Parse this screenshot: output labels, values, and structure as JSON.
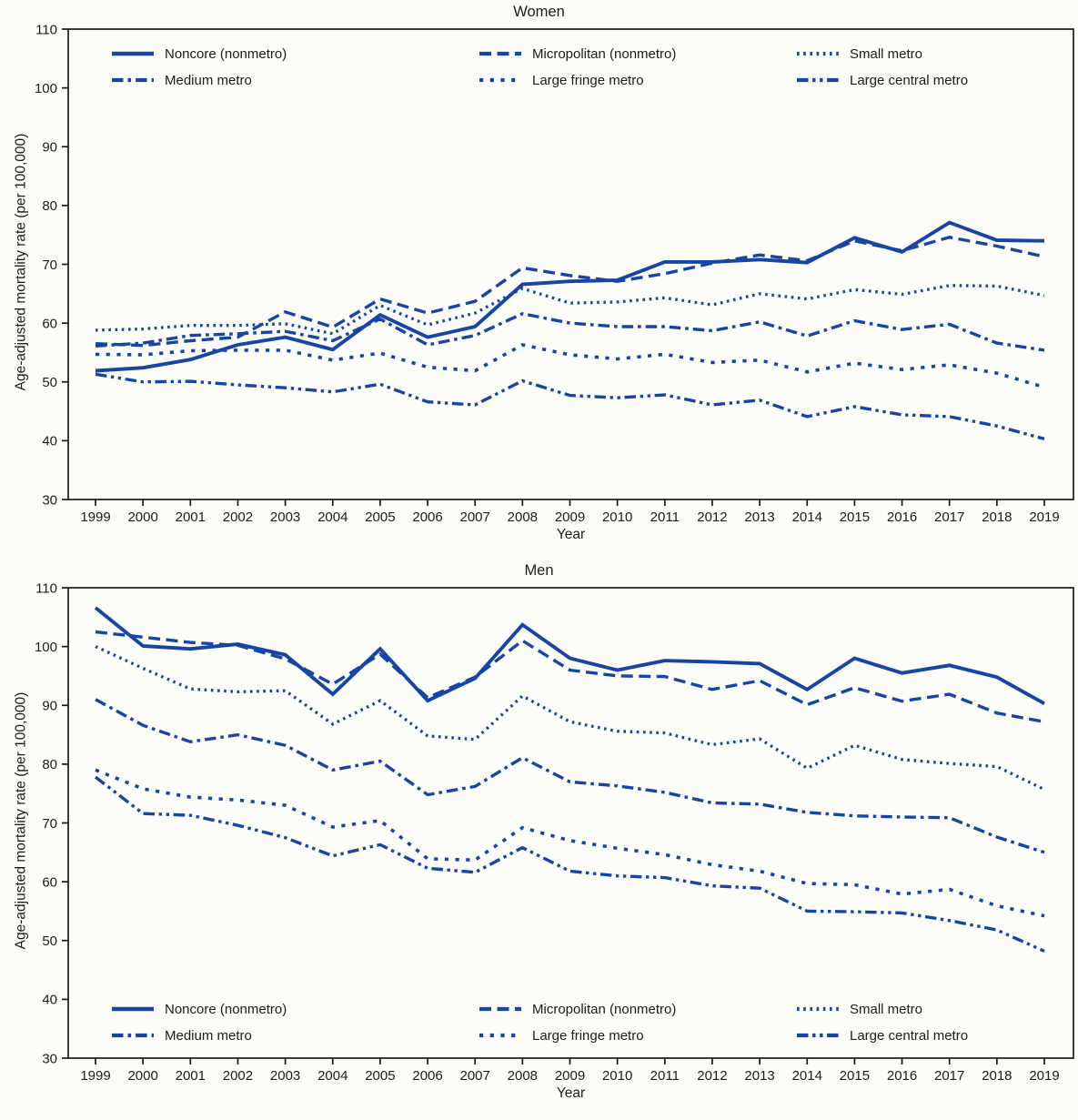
{
  "figure": {
    "background_color": "#fcfcf9",
    "line_color": "#1745a5",
    "axis_color": "#1a1a1a",
    "text_color": "#1c1c1c"
  },
  "chart_data": [
    {
      "type": "line",
      "title": "Women",
      "xlabel": "Year",
      "ylabel": "Age-adjusted mortality rate (per 100,000)",
      "ylim": [
        30,
        110
      ],
      "yticks": [
        30,
        40,
        50,
        60,
        70,
        80,
        90,
        100,
        110
      ],
      "grid": false,
      "legend_position": "top-inside",
      "x": [
        1999,
        2000,
        2001,
        2002,
        2003,
        2004,
        2005,
        2006,
        2007,
        2008,
        2009,
        2010,
        2011,
        2012,
        2013,
        2014,
        2015,
        2016,
        2017,
        2018,
        2019
      ],
      "series": [
        {
          "name": "Noncore (nonmetro)",
          "style": "solid",
          "values": [
            51.9,
            52.4,
            53.8,
            56.3,
            57.6,
            55.5,
            61.4,
            57.6,
            59.4,
            66.6,
            67.1,
            67.3,
            70.4,
            70.4,
            70.8,
            70.3,
            74.5,
            72.1,
            77.1,
            74.1,
            74.0
          ]
        },
        {
          "name": "Micropolitan (nonmetro)",
          "style": "dash",
          "values": [
            56.5,
            56.2,
            57.0,
            57.6,
            61.9,
            59.3,
            64.1,
            61.7,
            63.7,
            69.4,
            68.1,
            67.1,
            68.4,
            70.2,
            71.6,
            70.6,
            74.0,
            72.3,
            74.6,
            73.1,
            71.3
          ]
        },
        {
          "name": "Small metro",
          "style": "dot",
          "values": [
            58.8,
            59.0,
            59.6,
            59.6,
            59.9,
            58.2,
            63.0,
            59.7,
            61.7,
            65.9,
            63.4,
            63.6,
            64.3,
            63.1,
            65.0,
            64.1,
            65.7,
            64.9,
            66.4,
            66.3,
            64.7
          ]
        },
        {
          "name": "Medium metro",
          "style": "dashdot",
          "values": [
            56.1,
            56.6,
            57.9,
            58.2,
            58.6,
            57.0,
            60.7,
            56.3,
            57.9,
            61.6,
            60.0,
            59.4,
            59.4,
            58.7,
            60.2,
            57.8,
            60.4,
            58.9,
            59.8,
            56.6,
            55.4
          ]
        },
        {
          "name": "Large fringe metro",
          "style": "sqdot",
          "values": [
            54.7,
            54.6,
            55.3,
            55.4,
            55.4,
            53.7,
            54.9,
            52.5,
            51.9,
            56.3,
            54.6,
            53.9,
            54.7,
            53.3,
            53.7,
            51.7,
            53.2,
            52.1,
            52.9,
            51.5,
            49.1
          ]
        },
        {
          "name": "Large central metro",
          "style": "dashdotdot",
          "values": [
            51.3,
            50.0,
            50.1,
            49.5,
            49.0,
            48.3,
            49.6,
            46.6,
            46.1,
            50.2,
            47.7,
            47.3,
            47.8,
            46.1,
            46.9,
            44.1,
            45.8,
            44.4,
            44.1,
            42.5,
            40.3
          ]
        }
      ]
    },
    {
      "type": "line",
      "title": "Men",
      "xlabel": "Year",
      "ylabel": "Age-adjusted mortality rate (per 100,000)",
      "ylim": [
        30,
        110
      ],
      "yticks": [
        30,
        40,
        50,
        60,
        70,
        80,
        90,
        100,
        110
      ],
      "grid": false,
      "legend_position": "bottom-inside",
      "x": [
        1999,
        2000,
        2001,
        2002,
        2003,
        2004,
        2005,
        2006,
        2007,
        2008,
        2009,
        2010,
        2011,
        2012,
        2013,
        2014,
        2015,
        2016,
        2017,
        2018,
        2019
      ],
      "series": [
        {
          "name": "Noncore (nonmetro)",
          "style": "solid",
          "values": [
            106.6,
            100.1,
            99.6,
            100.4,
            98.6,
            91.9,
            99.6,
            90.8,
            94.6,
            103.7,
            98.0,
            96.0,
            97.6,
            97.4,
            97.1,
            92.7,
            98.0,
            95.5,
            96.8,
            94.8,
            90.3
          ]
        },
        {
          "name": "Micropolitan (nonmetro)",
          "style": "dash",
          "values": [
            102.5,
            101.6,
            100.7,
            100.2,
            97.9,
            93.6,
            98.7,
            91.3,
            94.8,
            101.0,
            96.0,
            95.0,
            94.9,
            92.7,
            94.2,
            90.1,
            93.0,
            90.7,
            91.9,
            88.7,
            87.2
          ]
        },
        {
          "name": "Small metro",
          "style": "dot",
          "values": [
            100.0,
            96.3,
            92.8,
            92.3,
            92.5,
            86.8,
            90.8,
            84.8,
            84.2,
            91.6,
            87.2,
            85.6,
            85.3,
            83.3,
            84.3,
            79.3,
            83.2,
            80.8,
            80.1,
            79.6,
            75.7
          ]
        },
        {
          "name": "Medium metro",
          "style": "dashdot",
          "values": [
            91.0,
            86.6,
            83.8,
            85.0,
            83.2,
            79.0,
            80.5,
            74.8,
            76.2,
            81.1,
            77.0,
            76.3,
            75.2,
            73.4,
            73.2,
            71.8,
            71.2,
            71.0,
            70.9,
            67.6,
            65.0
          ]
        },
        {
          "name": "Large fringe metro",
          "style": "sqdot",
          "values": [
            79.0,
            75.8,
            74.4,
            73.9,
            73.0,
            69.3,
            70.4,
            63.9,
            63.7,
            69.2,
            67.0,
            65.7,
            64.6,
            62.9,
            61.8,
            59.7,
            59.5,
            57.9,
            58.7,
            55.9,
            54.2
          ]
        },
        {
          "name": "Large central metro",
          "style": "dashdotdot",
          "values": [
            77.8,
            71.6,
            71.3,
            69.6,
            67.5,
            64.4,
            66.3,
            62.3,
            61.6,
            65.8,
            61.8,
            61.0,
            60.7,
            59.3,
            58.9,
            55.0,
            54.9,
            54.7,
            53.4,
            51.8,
            48.2
          ]
        }
      ]
    }
  ]
}
